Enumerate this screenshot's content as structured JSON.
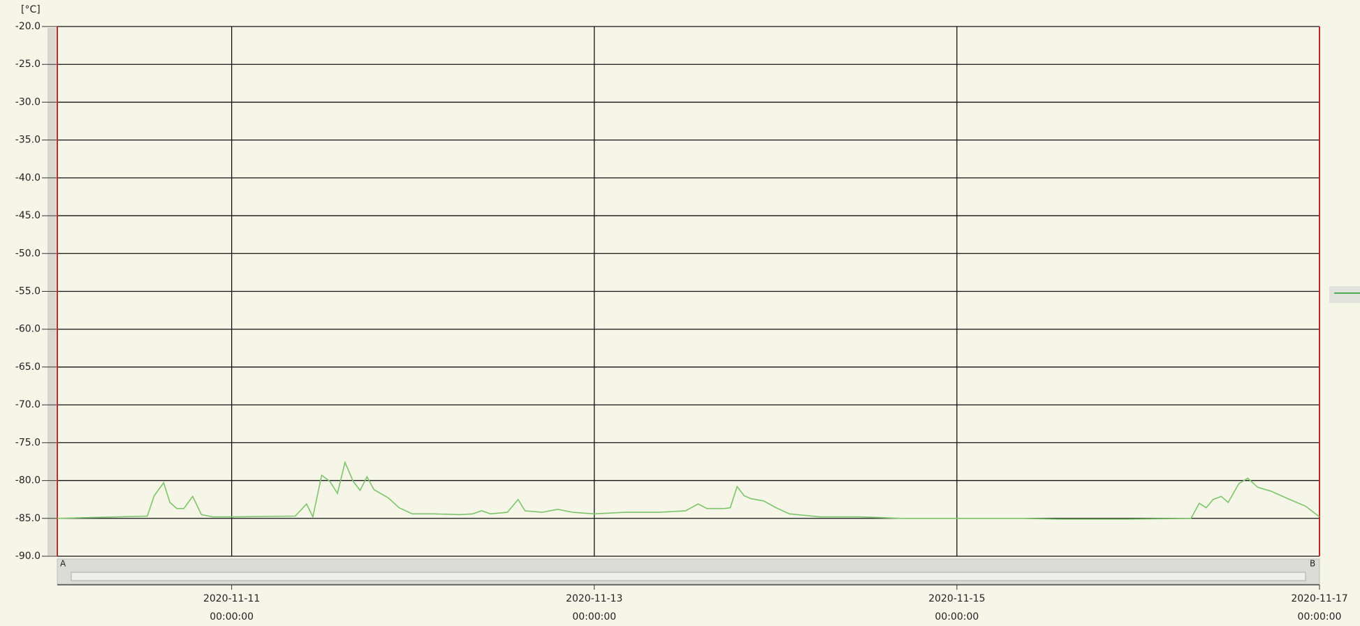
{
  "chart_data": {
    "type": "line",
    "y_unit": "[°C]",
    "cursor_labels": [
      "A",
      "B"
    ],
    "x": [
      "2020-11-10 00:55:00",
      "2020-11-10 12:50:00",
      "2020-11-10 13:45:00",
      "2020-11-10 15:00:00",
      "2020-11-10 15:50:00",
      "2020-11-10 16:45:00",
      "2020-11-10 17:40:00",
      "2020-11-10 18:50:00",
      "2020-11-10 20:00:00",
      "2020-11-10 21:30:00",
      "2020-11-11 00:00:00",
      "2020-11-11 08:25:00",
      "2020-11-11 09:55:00",
      "2020-11-11 10:45:00",
      "2020-11-11 11:55:00",
      "2020-11-11 13:00:00",
      "2020-11-11 14:00:00",
      "2020-11-11 15:00:00",
      "2020-11-11 16:05:00",
      "2020-11-11 17:00:00",
      "2020-11-11 17:55:00",
      "2020-11-11 18:50:00",
      "2020-11-11 20:45:00",
      "2020-11-11 22:10:00",
      "2020-11-11 23:55:00",
      "2020-11-12 02:45:00",
      "2020-11-12 06:10:00",
      "2020-11-12 07:55:00",
      "2020-11-12 09:05:00",
      "2020-11-12 10:15:00",
      "2020-11-12 12:30:00",
      "2020-11-12 13:55:00",
      "2020-11-12 14:50:00",
      "2020-11-12 17:05:00",
      "2020-11-12 19:10:00",
      "2020-11-12 21:10:00",
      "2020-11-13 00:00:00",
      "2020-11-13 04:00:00",
      "2020-11-13 08:35:00",
      "2020-11-13 12:05:00",
      "2020-11-13 13:45:00",
      "2020-11-13 14:55:00",
      "2020-11-13 17:15:00",
      "2020-11-13 18:00:00",
      "2020-11-13 18:55:00",
      "2020-11-13 19:50:00",
      "2020-11-13 20:45:00",
      "2020-11-13 22:25:00",
      "2020-11-14 00:05:00",
      "2020-11-14 01:50:00",
      "2020-11-14 05:50:00",
      "2020-11-14 11:00:00",
      "2020-11-14 16:45:00",
      "2020-11-14 23:40:00",
      "2020-11-15 08:50:00",
      "2020-11-15 13:25:00",
      "2020-11-15 22:40:00",
      "2020-11-16 07:00:00",
      "2020-11-16 08:05:00",
      "2020-11-16 09:00:00",
      "2020-11-16 09:55:00",
      "2020-11-16 11:00:00",
      "2020-11-16 11:55:00",
      "2020-11-16 13:20:00",
      "2020-11-16 14:30:00",
      "2020-11-16 15:50:00",
      "2020-11-16 17:35:00",
      "2020-11-16 19:50:00",
      "2020-11-16 22:10:00",
      "2020-11-17 00:00:00"
    ],
    "series": [
      {
        "color": "#7dc46a",
        "values": [
          -85.0,
          -84.7,
          -82.0,
          -80.3,
          -82.9,
          -83.7,
          -83.7,
          -82.1,
          -84.5,
          -84.8,
          -84.8,
          -84.7,
          -83.1,
          -84.8,
          -79.3,
          -80.1,
          -81.7,
          -77.6,
          -80.1,
          -81.3,
          -79.5,
          -81.2,
          -82.3,
          -83.6,
          -84.4,
          -84.4,
          -84.5,
          -84.4,
          -84.0,
          -84.4,
          -84.2,
          -82.5,
          -84.0,
          -84.2,
          -83.8,
          -84.2,
          -84.4,
          -84.2,
          -84.2,
          -84.0,
          -83.1,
          -83.7,
          -83.7,
          -83.6,
          -80.8,
          -82.0,
          -82.4,
          -82.7,
          -83.6,
          -84.4,
          -84.8,
          -84.8,
          -85.0,
          -85.0,
          -85.0,
          -85.1,
          -85.1,
          -85.0,
          -83.0,
          -83.6,
          -82.5,
          -82.1,
          -82.9,
          -80.4,
          -79.7,
          -80.9,
          -81.4,
          -82.4,
          -83.4,
          -84.8
        ]
      }
    ],
    "xlim": [
      "2020-11-10 00:55:00",
      "2020-11-17 00:00:00"
    ],
    "xticks": [
      {
        "value": "2020-11-11 00:00:00",
        "label": [
          "2020-11-11",
          "00:00:00"
        ]
      },
      {
        "value": "2020-11-13 00:00:00",
        "label": [
          "2020-11-13",
          "00:00:00"
        ]
      },
      {
        "value": "2020-11-15 00:00:00",
        "label": [
          "2020-11-15",
          "00:00:00"
        ]
      },
      {
        "value": "2020-11-17 00:00:00",
        "label": [
          "2020-11-17",
          "00:00:00"
        ]
      }
    ],
    "ylim": [
      -90,
      -20
    ],
    "yticks": [
      {
        "value": -20,
        "label": "-20.0"
      },
      {
        "value": -25,
        "label": "-25.0"
      },
      {
        "value": -30,
        "label": "-30.0"
      },
      {
        "value": -35,
        "label": "-35.0"
      },
      {
        "value": -40,
        "label": "-40.0"
      },
      {
        "value": -45,
        "label": "-45.0"
      },
      {
        "value": -50,
        "label": "-50.0"
      },
      {
        "value": -55,
        "label": "-55.0"
      },
      {
        "value": -60,
        "label": "-60.0"
      },
      {
        "value": -65,
        "label": "-65.0"
      },
      {
        "value": -70,
        "label": "-70.0"
      },
      {
        "value": -75,
        "label": "-75.0"
      },
      {
        "value": -80,
        "label": "-80.0"
      },
      {
        "value": -85,
        "label": "-85.0"
      },
      {
        "value": -90,
        "label": "-90.0"
      }
    ],
    "grid": true
  }
}
